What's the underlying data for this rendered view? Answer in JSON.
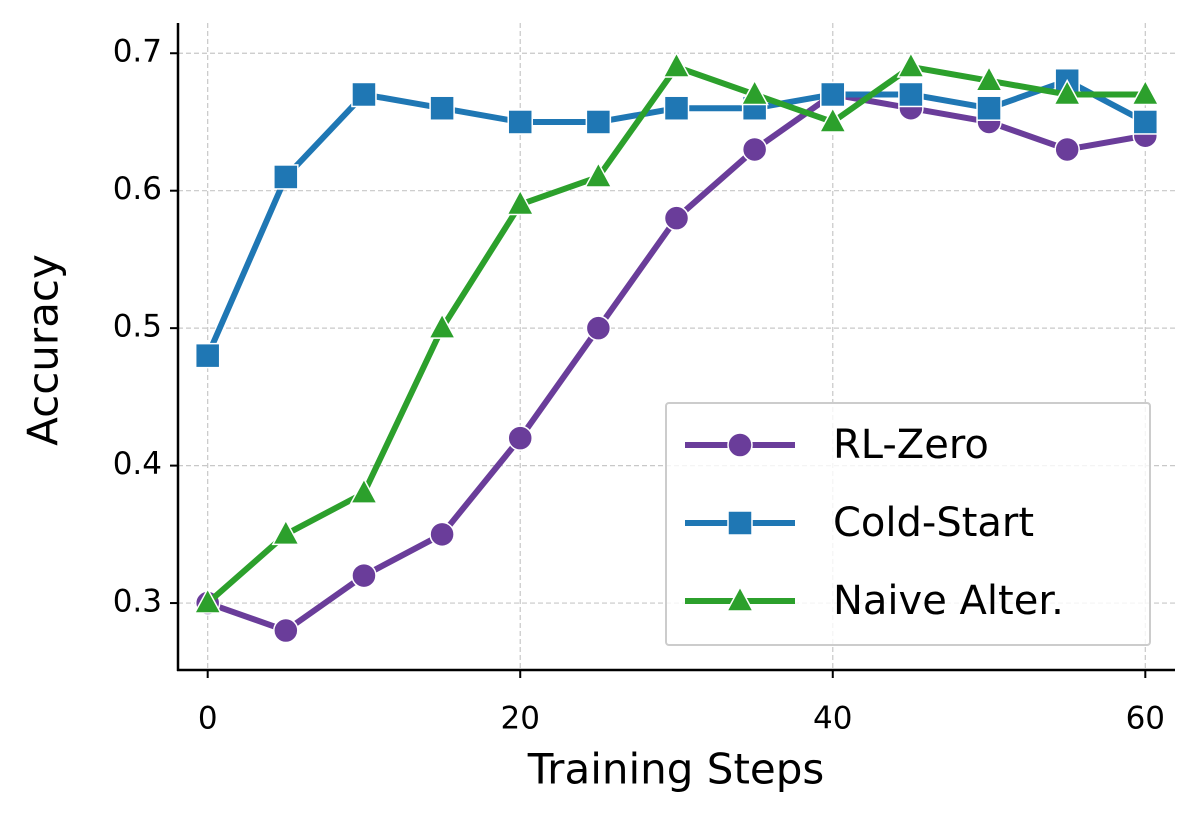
{
  "chart_data": {
    "type": "line",
    "x_label": "Training Steps",
    "y_label": "Accuracy",
    "x": [
      0,
      5,
      10,
      15,
      20,
      25,
      30,
      35,
      40,
      45,
      50,
      55,
      60
    ],
    "series": [
      {
        "name": "RL-Zero",
        "color": "#6a3d9a",
        "marker": "circle",
        "values": [
          0.3,
          0.28,
          0.32,
          0.35,
          0.42,
          0.5,
          0.58,
          0.63,
          0.67,
          0.66,
          0.65,
          0.63,
          0.64
        ]
      },
      {
        "name": "Cold-Start",
        "color": "#1f77b4",
        "marker": "square",
        "values": [
          0.48,
          0.61,
          0.67,
          0.66,
          0.65,
          0.65,
          0.66,
          0.66,
          0.67,
          0.67,
          0.66,
          0.68,
          0.65
        ]
      },
      {
        "name": "Naive Alter.",
        "color": "#2ca02c",
        "marker": "triangle",
        "values": [
          0.3,
          0.35,
          0.38,
          0.5,
          0.59,
          0.61,
          0.69,
          0.67,
          0.65,
          0.69,
          0.68,
          0.67,
          0.67
        ]
      }
    ],
    "xlim": [
      -1.9,
      61.9
    ],
    "ylim": [
      0.2513,
      0.722
    ],
    "xticks": [
      0,
      20,
      40,
      60
    ],
    "yticks": [
      0.3,
      0.4,
      0.5,
      0.6,
      0.7
    ],
    "grid": true,
    "legend": "lower right"
  }
}
